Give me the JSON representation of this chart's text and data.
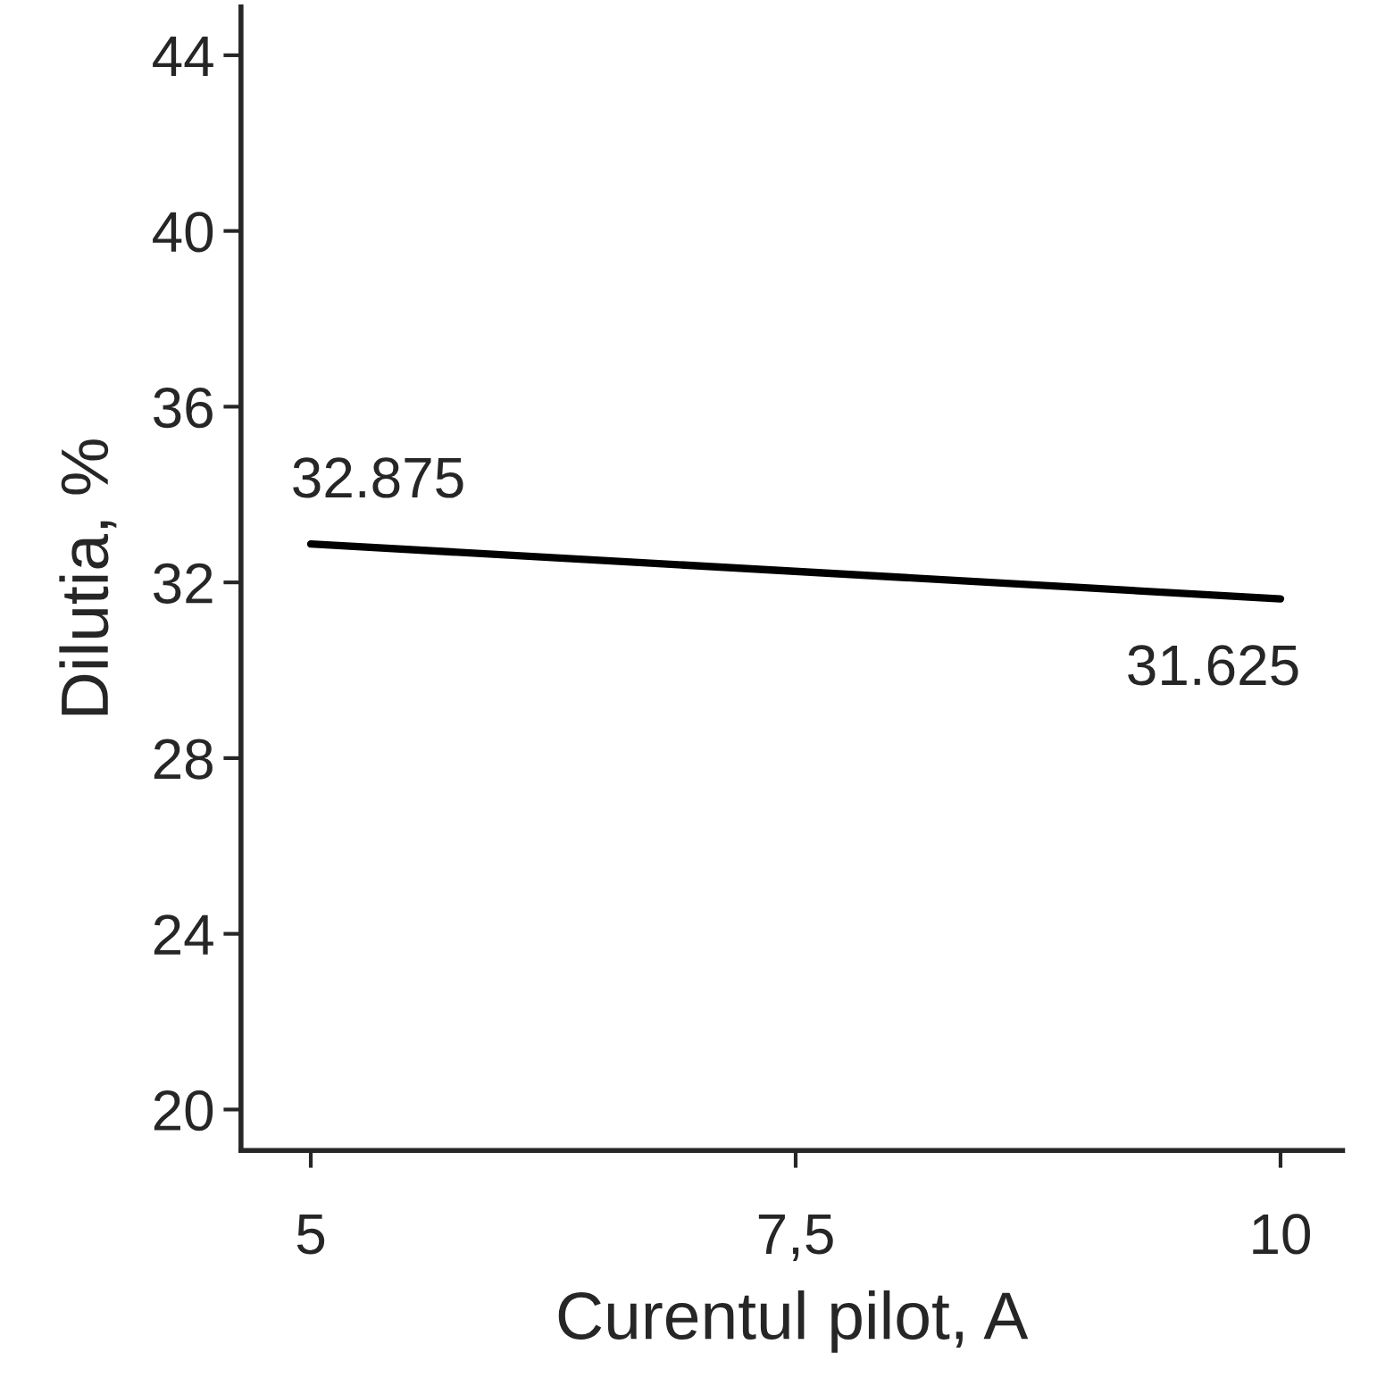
{
  "chart_data": {
    "type": "line",
    "xlabel": "Curentul pilot, A",
    "ylabel": "Dilutia, %",
    "x": [
      5,
      10
    ],
    "series": [
      {
        "color": "#000000",
        "values": [
          32.875,
          31.625
        ]
      }
    ],
    "data_labels": true,
    "xlim": [
      4.64,
      10.32
    ],
    "ylim": [
      19.07,
      45.1
    ],
    "xticks": [
      5,
      {
        "value": 7.5,
        "label": "7,5"
      },
      10
    ],
    "yticks": [
      20,
      24,
      28,
      32,
      36,
      40,
      44
    ],
    "grid": false,
    "marker": "none",
    "line_style": "solid"
  }
}
